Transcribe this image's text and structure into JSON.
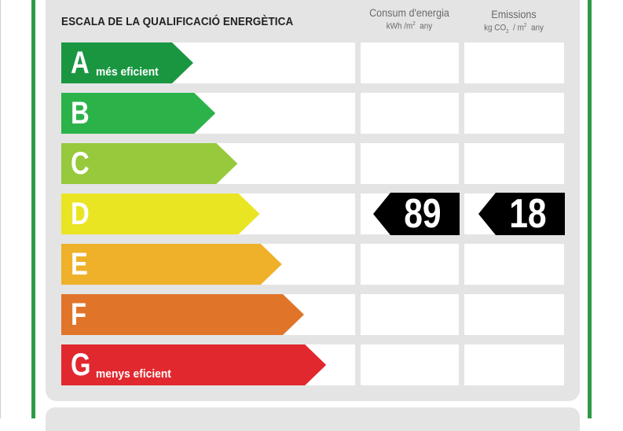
{
  "title": "ESCALA DE LA QUALIFICACIÓ ENERGÈTICA",
  "columns": {
    "consumption": {
      "label": "Consum d'energia",
      "unit_prefix": "kWh /m",
      "unit_exp": "2",
      "unit_suffix": "  any"
    },
    "emissions": {
      "label": "Emissions",
      "unit_prefix": "kg CO",
      "unit_sub": "2",
      "unit_mid": "  / m",
      "unit_exp": "2",
      "unit_suffix": "  any"
    }
  },
  "classes": [
    {
      "letter": "A",
      "sublabel": "més eficient",
      "color": "#1a9641"
    },
    {
      "letter": "B",
      "sublabel": "",
      "color": "#2bb34a"
    },
    {
      "letter": "C",
      "sublabel": "",
      "color": "#97c93d"
    },
    {
      "letter": "D",
      "sublabel": "",
      "color": "#e9e523"
    },
    {
      "letter": "E",
      "sublabel": "",
      "color": "#efb12a"
    },
    {
      "letter": "F",
      "sublabel": "",
      "color": "#e0752a"
    },
    {
      "letter": "G",
      "sublabel": "menys eficient",
      "color": "#e1282e"
    }
  ],
  "rating": {
    "class": "D",
    "consumption_value": "89",
    "emissions_value": "18",
    "indicator_color": "#000000"
  },
  "frame_color": "#2f9a45",
  "panel_color": "#e4e4e4"
}
